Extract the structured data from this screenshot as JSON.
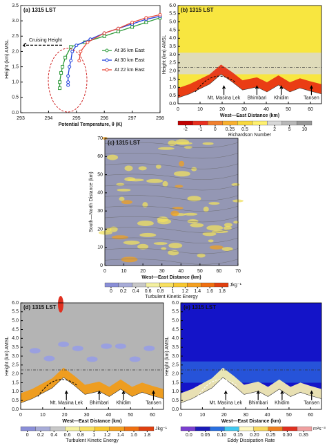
{
  "chart_data": [
    {
      "type": "line",
      "title": "(a) 1315 LST",
      "x_label": "Potential Temperature, θ (K)",
      "y_label": "Height (km) AMSL",
      "xlim": [
        293,
        298
      ],
      "xticks": [
        293,
        294,
        295,
        296,
        297,
        298
      ],
      "ylim": [
        0,
        3.5
      ],
      "yticks": [
        {
          "value": 0,
          "label": "0.0"
        },
        {
          "value": 0.5,
          "label": "0.5"
        },
        {
          "value": 1,
          "label": "1.0"
        },
        {
          "value": 1.5,
          "label": "1.5"
        },
        {
          "value": 2,
          "label": "2.0"
        },
        {
          "value": 2.5,
          "label": "2.5"
        },
        {
          "value": 3,
          "label": "3.0"
        },
        {
          "value": 3.5,
          "label": "3.5"
        }
      ],
      "annotation": "Cruising Height",
      "series": [
        {
          "name": "At 36 km East",
          "color": "#2e9b3a",
          "marker": "square",
          "x": [
            294.4,
            294.4,
            294.45,
            294.5,
            294.6,
            294.8,
            295.3,
            296,
            296.5,
            297,
            297.5,
            298
          ],
          "values": [
            0.8,
            1.0,
            1.3,
            1.5,
            1.8,
            2.15,
            2.3,
            2.5,
            2.65,
            2.8,
            2.95,
            3.1
          ]
        },
        {
          "name": "At 30 km East",
          "color": "#1f3fdc",
          "marker": "circle",
          "x": [
            294.7,
            294.7,
            294.7,
            294.75,
            294.8,
            294.85,
            295,
            295.5,
            296,
            296.5,
            297,
            297.5,
            298
          ],
          "values": [
            0.9,
            1.0,
            1.2,
            1.5,
            1.7,
            2.0,
            2.2,
            2.4,
            2.6,
            2.75,
            2.9,
            3.05,
            3.15
          ]
        },
        {
          "name": "At 22 km East",
          "color": "#e8493a",
          "marker": "circle",
          "x": [
            295.1,
            295.15,
            295.4,
            296,
            296.5,
            297,
            297.5,
            298
          ],
          "values": [
            1.7,
            2.0,
            2.3,
            2.6,
            2.75,
            2.95,
            3.1,
            3.2
          ]
        }
      ]
    },
    {
      "type": "contour",
      "field": "richardson",
      "title": "(b) 1315 LST",
      "x_label": "West—East Distance (km)",
      "y_label": "Height (km) AMSL",
      "xlim": [
        0,
        65
      ],
      "xticks": [
        0,
        10,
        20,
        30,
        40,
        50,
        60
      ],
      "ylim": [
        0,
        6
      ],
      "yticks": [
        {
          "value": 0,
          "label": "0.0"
        },
        {
          "value": 0.5,
          "label": "0.5"
        },
        {
          "value": 1,
          "label": "1.0"
        },
        {
          "value": 1.5,
          "label": "1.5"
        },
        {
          "value": 2,
          "label": "2.0"
        },
        {
          "value": 2.5,
          "label": "2.5"
        },
        {
          "value": 3,
          "label": "3.0"
        },
        {
          "value": 3.5,
          "label": "3.5"
        },
        {
          "value": 4,
          "label": "4.0"
        },
        {
          "value": 4.5,
          "label": "4.5"
        },
        {
          "value": 5,
          "label": "5.0"
        },
        {
          "value": 5.5,
          "label": "5.5"
        },
        {
          "value": 6,
          "label": "6.0"
        }
      ],
      "annotations": [
        "Mt. Masina Lek",
        "Bhimbari",
        "Khidim",
        "Tansen"
      ],
      "colorbar": {
        "label": "Richardson Number",
        "ticks": [
          -2,
          -1,
          0,
          0.25,
          0.5,
          1,
          2,
          5,
          10
        ],
        "colors": [
          "#c00000",
          "#e83020",
          "#f08030",
          "#f8b030",
          "#f8d840",
          "#fff070",
          "#d8d8d8",
          "#b8b8b8",
          "#989898"
        ]
      }
    },
    {
      "type": "contour",
      "field": "tke-plan",
      "title": "(c) 1315 LST",
      "x_label": "West—East Distance (km)",
      "y_label": "South—North Distance (km)",
      "xlim": [
        0,
        70
      ],
      "xticks": [
        0,
        10,
        20,
        30,
        40,
        50,
        60,
        70
      ],
      "ylim": [
        0,
        70
      ],
      "yticks": [
        0,
        10,
        20,
        30,
        40,
        50,
        60,
        70
      ],
      "colorbar": {
        "label": "Turbulent Kinetic Energy",
        "unit": "Jkg⁻¹",
        "ticks": [
          0,
          0.2,
          0.4,
          0.6,
          0.8,
          1,
          1.2,
          1.4,
          1.6,
          1.8
        ],
        "colors": [
          "#8a8fd8",
          "#a8acd8",
          "#c8c8c8",
          "#f4f0a0",
          "#f8e060",
          "#f8c830",
          "#f4a020",
          "#f07010",
          "#e04010"
        ]
      }
    },
    {
      "type": "contour",
      "field": "tke",
      "title": "(d) 1315 LST",
      "x_label": "West—East Distance (km)",
      "y_label": "Height (km) AMSL",
      "xlim": [
        0,
        65
      ],
      "xticks": [
        0,
        10,
        20,
        30,
        40,
        50,
        60
      ],
      "ylim": [
        0,
        6
      ],
      "yticks": [
        {
          "value": 0,
          "label": "0.0"
        },
        {
          "value": 0.5,
          "label": "0.5"
        },
        {
          "value": 1,
          "label": "1.0"
        },
        {
          "value": 1.5,
          "label": "1.5"
        },
        {
          "value": 2,
          "label": "2.0"
        },
        {
          "value": 2.5,
          "label": "2.5"
        },
        {
          "value": 3,
          "label": "3.0"
        },
        {
          "value": 3.5,
          "label": "3.5"
        },
        {
          "value": 4,
          "label": "4.0"
        },
        {
          "value": 4.5,
          "label": "4.5"
        },
        {
          "value": 5,
          "label": "5.0"
        },
        {
          "value": 5.5,
          "label": "5.5"
        },
        {
          "value": 6,
          "label": "6.0"
        }
      ],
      "annotations": [
        "Mt. Masina Lek",
        "Bhimbari",
        "Khidim",
        "Tansen"
      ],
      "colorbar": {
        "label": "Turbulent Kinetic Energy",
        "unit": "Jkg⁻¹",
        "ticks": [
          0,
          0.2,
          0.4,
          0.6,
          0.8,
          1,
          1.2,
          1.4,
          1.6,
          1.8
        ],
        "colors": [
          "#8a8fd8",
          "#a8acd8",
          "#c8c8c8",
          "#f4f0a0",
          "#f8e060",
          "#f8c830",
          "#f4a020",
          "#f07010",
          "#e04010"
        ]
      }
    },
    {
      "type": "contour",
      "field": "edr",
      "title": "(e) 1315 LST",
      "x_label": "West—East Distance (km)",
      "y_label": "Height (km) AMSL",
      "xlim": [
        0,
        65
      ],
      "xticks": [
        0,
        10,
        20,
        30,
        40,
        50,
        60
      ],
      "ylim": [
        0,
        6
      ],
      "yticks": [
        {
          "value": 0,
          "label": "0.0"
        },
        {
          "value": 0.5,
          "label": "0.5"
        },
        {
          "value": 1,
          "label": "1.0"
        },
        {
          "value": 1.5,
          "label": "1.5"
        },
        {
          "value": 2,
          "label": "2.0"
        },
        {
          "value": 2.5,
          "label": "2.5"
        },
        {
          "value": 3,
          "label": "3.0"
        },
        {
          "value": 3.5,
          "label": "3.5"
        },
        {
          "value": 4,
          "label": "4.0"
        },
        {
          "value": 4.5,
          "label": "4.5"
        },
        {
          "value": 5,
          "label": "5.0"
        },
        {
          "value": 5.5,
          "label": "5.5"
        },
        {
          "value": 6,
          "label": "6.0"
        }
      ],
      "annotations": [
        "Mt. Masina Lek",
        "Bhimbari",
        "Khidim",
        "Tansen"
      ],
      "colorbar": {
        "label": "Eddy Dissipation Rate",
        "unit": "m²s⁻³",
        "ticks": [
          {
            "value": 0,
            "label": "0.0"
          },
          0.05,
          {
            "value": 0.1,
            "label": "0.10"
          },
          0.15,
          {
            "value": 0.2,
            "label": "0.20"
          },
          0.25,
          {
            "value": 0.3,
            "label": "0.30"
          },
          0.35
        ],
        "colors": [
          "#7b3fd0",
          "#1a1ab8",
          "#2a70e0",
          "#40c8f0",
          "#fff8c0",
          "#f8d860",
          "#f08020",
          "#e03020",
          "#f0a0a0"
        ]
      }
    }
  ]
}
